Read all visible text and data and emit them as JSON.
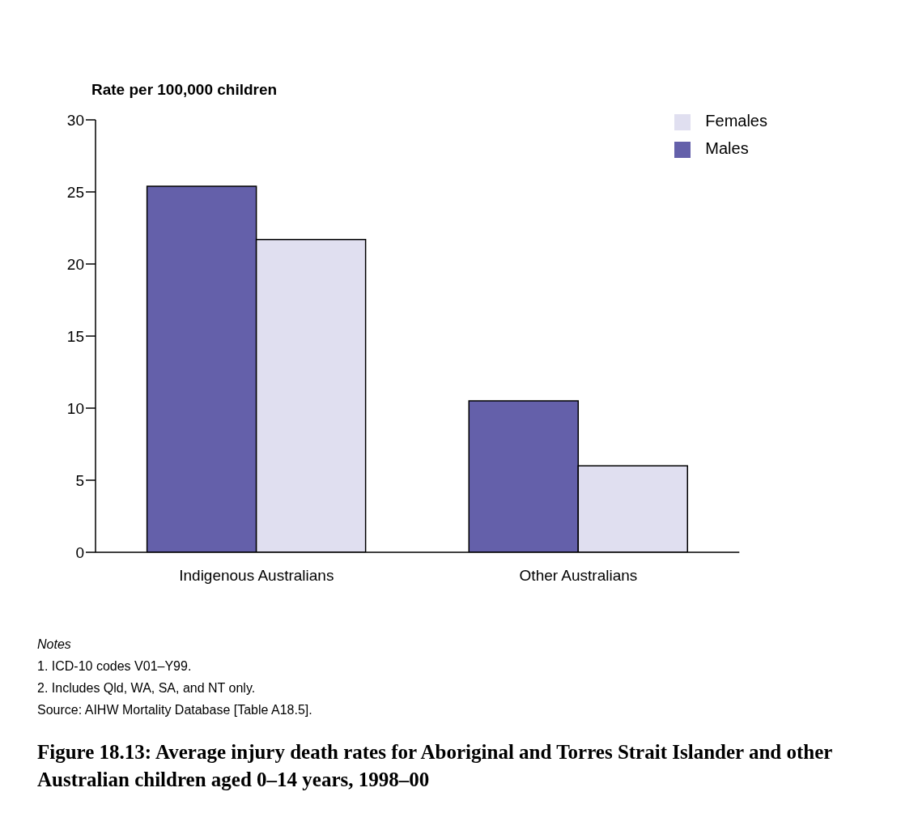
{
  "chart_data": {
    "type": "bar",
    "title": "Figure 18.13: Average injury death rates for Aboriginal and Torres Strait Islander and other Australian children aged 0–14 years, 1998–00",
    "ylabel": "Rate per 100,000 children",
    "categories": [
      "Indigenous Australians",
      "Other Australians"
    ],
    "series": [
      {
        "name": "Males",
        "color": "#6460aa",
        "values": [
          25.4,
          10.5
        ]
      },
      {
        "name": "Females",
        "color": "#e0dff0",
        "values": [
          21.7,
          6.0
        ]
      }
    ],
    "ylim": [
      0,
      30
    ],
    "yticks": [
      0,
      5,
      10,
      15,
      20,
      25,
      30
    ],
    "grid": false,
    "legend": "top right",
    "annotations": [
      "Notes",
      "1. ICD-10 codes V01–Y99.",
      "2. Includes Qld, WA, SA, and NT only.",
      "Source: AIHW Mortality Database [Table A18.5]."
    ]
  }
}
